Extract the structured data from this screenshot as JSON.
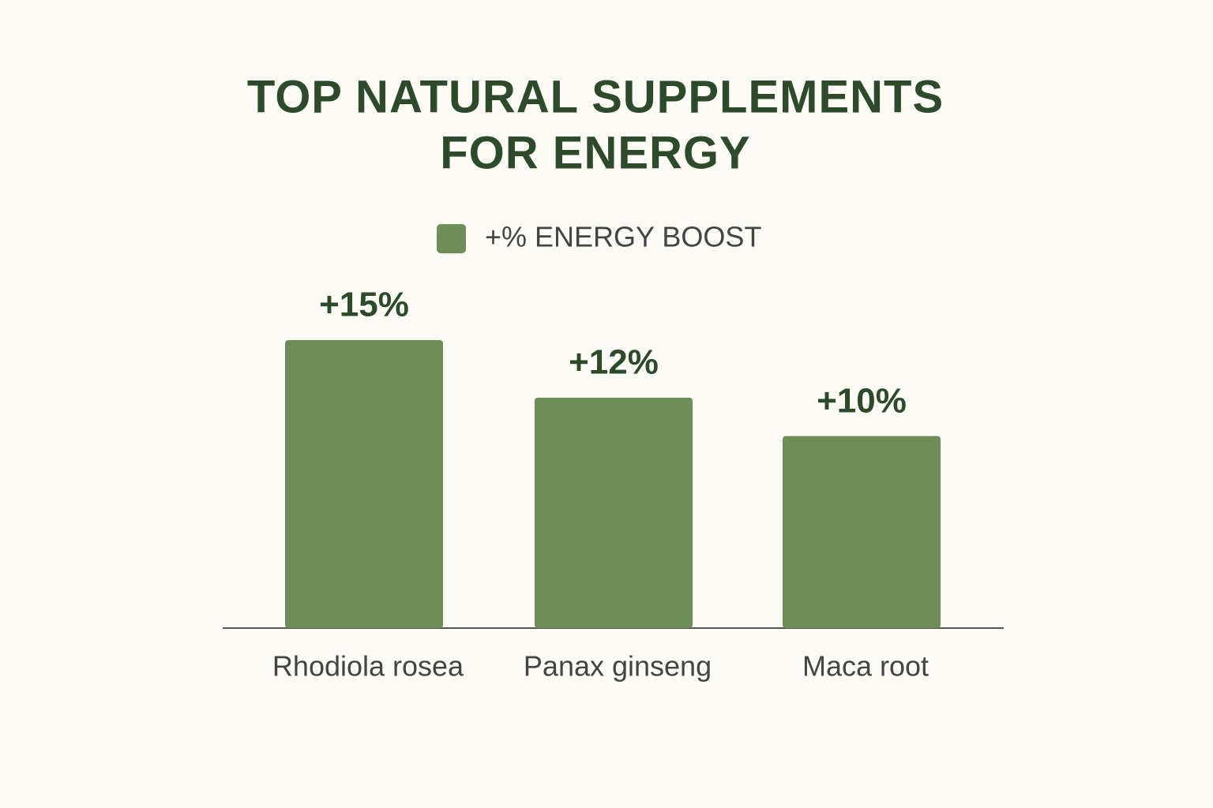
{
  "chart_data": {
    "type": "bar",
    "title": [
      "TOP NATURAL SUPPLEMENTS",
      "FOR ENERGY"
    ],
    "categories": [
      "Rhodiola rosea",
      "Panax ginseng",
      "Maca root"
    ],
    "series": [
      {
        "name": "+% ENERGY BOOST",
        "color": "#6e8d57",
        "values": [
          15,
          12,
          10
        ],
        "value_labels": [
          "+15%",
          "+12%",
          "+10%"
        ]
      }
    ]
  }
}
